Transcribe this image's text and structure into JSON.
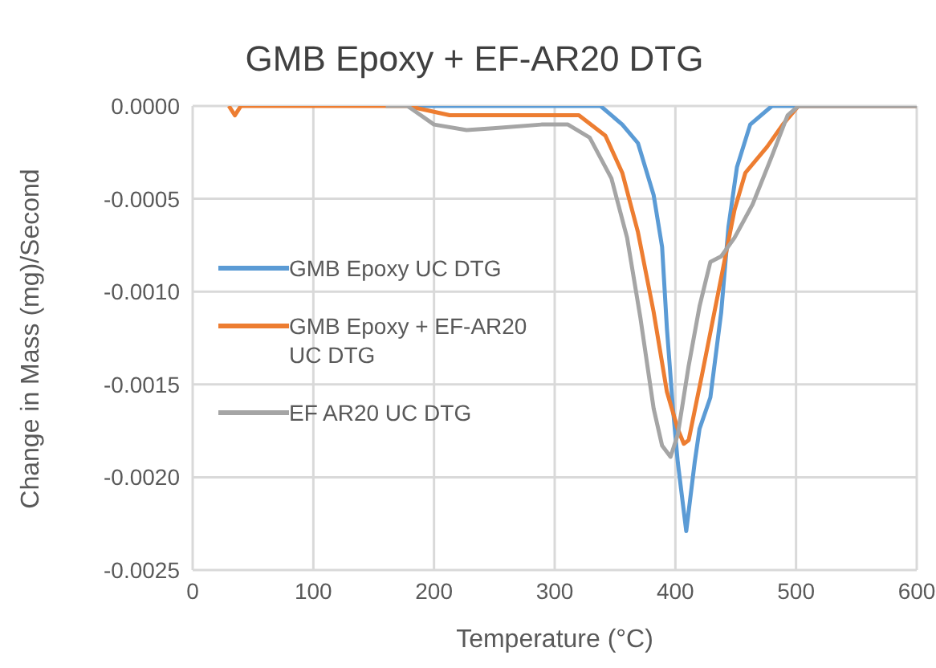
{
  "chart_data": {
    "type": "line",
    "title": "GMB Epoxy + EF-AR20 DTG",
    "xlabel": "Temperature (°C)",
    "ylabel": "Change in Mass (mg)/Second",
    "xlim": [
      0,
      600
    ],
    "xticks": [
      0,
      100,
      200,
      300,
      400,
      500,
      600
    ],
    "ylim": [
      -0.0025,
      0
    ],
    "yticks": [
      {
        "value": 0,
        "label": "0.0000"
      },
      {
        "value": -0.0005,
        "label": "-0.0005"
      },
      {
        "value": -0.001,
        "label": "-0.0010"
      },
      {
        "value": -0.0015,
        "label": "-0.0015"
      },
      {
        "value": -0.002,
        "label": "-0.0020"
      },
      {
        "value": -0.0025,
        "label": "-0.0025"
      }
    ],
    "grid": true,
    "legend": "left",
    "marker": "none",
    "line_style": "solid",
    "series": [
      {
        "name": "GMB Epoxy UC DTG",
        "color": "#5b9bd5",
        "x": [
          180,
          250,
          300,
          338,
          356,
          369,
          382,
          389,
          393,
          398,
          402,
          409,
          416,
          420,
          429,
          438,
          444,
          451,
          462,
          480,
          502,
          540,
          600
        ],
        "values": [
          0,
          0,
          0,
          0,
          -0.0001,
          -0.0002,
          -0.00048,
          -0.00076,
          -0.0012,
          -0.00163,
          -0.00192,
          -0.00229,
          -0.00192,
          -0.00174,
          -0.00157,
          -0.00111,
          -0.00065,
          -0.00033,
          -0.0001,
          0,
          0,
          0,
          0
        ]
      },
      {
        "name": "GMB Epoxy + EF-AR20 UC DTG",
        "color": "#ed7d31",
        "x": [
          30,
          35,
          40,
          170,
          178,
          213,
          240,
          289,
          320,
          342,
          356,
          369,
          382,
          393,
          402,
          407,
          411,
          422,
          436,
          449,
          458,
          476,
          489,
          502,
          540,
          600
        ],
        "values": [
          0,
          -5e-05,
          0,
          0,
          0,
          -5e-05,
          -5e-05,
          -5e-05,
          -5e-05,
          -0.00016,
          -0.00036,
          -0.00068,
          -0.00111,
          -0.00154,
          -0.00174,
          -0.00182,
          -0.0018,
          -0.00145,
          -0.00099,
          -0.00056,
          -0.00036,
          -0.00022,
          -0.0001,
          0,
          0,
          0
        ]
      },
      {
        "name": "EF AR20 UC DTG",
        "color": "#a5a5a5",
        "x": [
          160,
          178,
          200,
          227,
          249,
          289,
          311,
          329,
          347,
          360,
          371,
          382,
          389,
          396,
          402,
          411,
          420,
          429,
          438,
          449,
          464,
          480,
          493,
          502,
          540,
          600
        ],
        "values": [
          0,
          0,
          -0.0001,
          -0.00013,
          -0.00012,
          -0.0001,
          -0.0001,
          -0.00017,
          -0.00039,
          -0.00071,
          -0.00114,
          -0.00163,
          -0.00183,
          -0.00189,
          -0.00177,
          -0.0014,
          -0.00108,
          -0.00084,
          -0.00081,
          -0.00071,
          -0.00053,
          -0.00027,
          -5e-05,
          0,
          0,
          0
        ]
      }
    ]
  }
}
